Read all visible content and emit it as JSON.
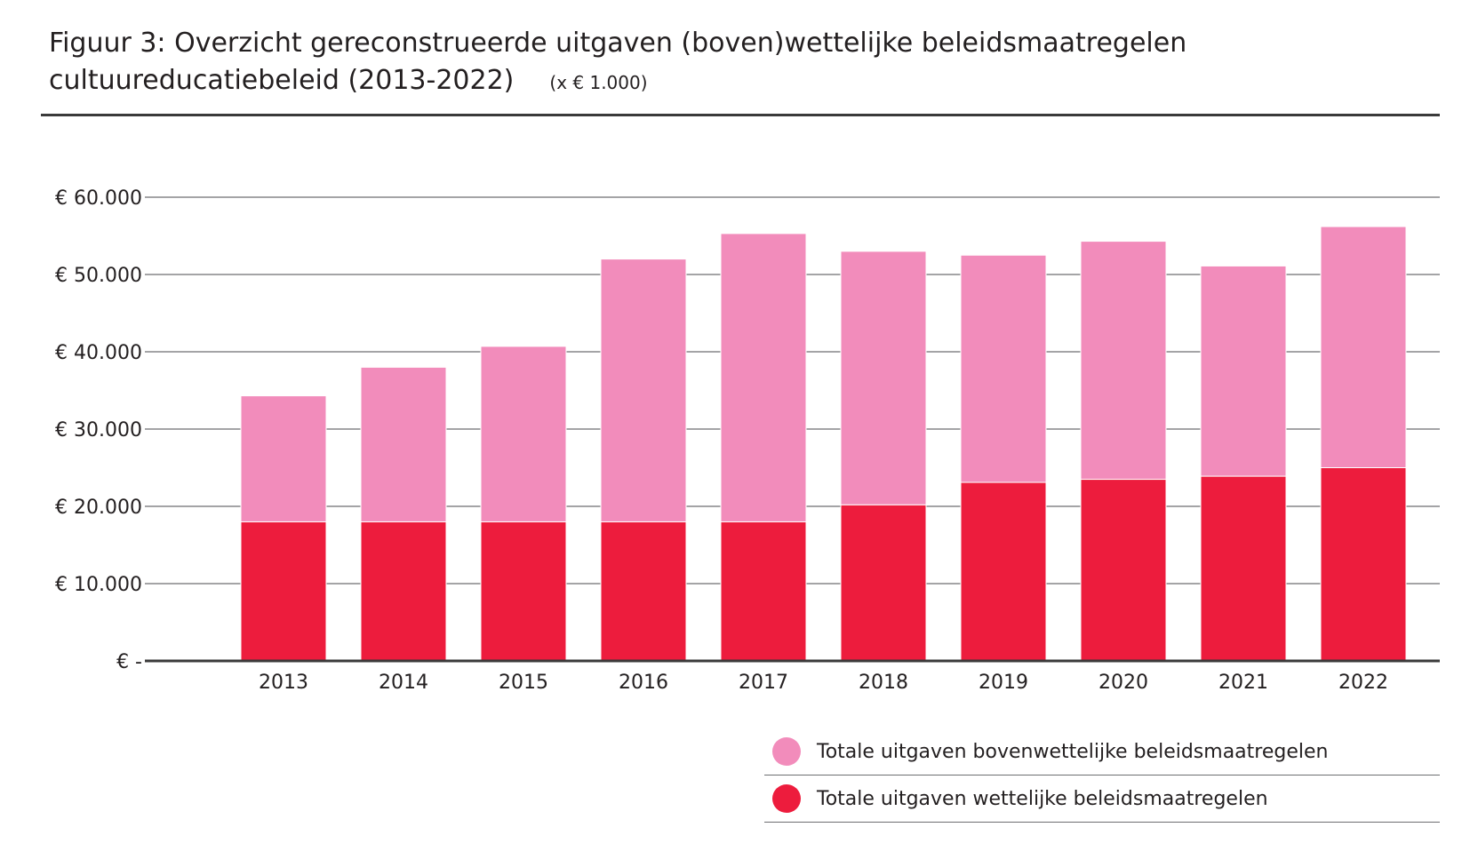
{
  "title": {
    "line1": "Figuur 3: Overzicht gereconstrueerde uitgaven (boven)wettelijke beleidsmaatregelen",
    "line2": "cultuureducatiebeleid (2013-2022)",
    "unit": "(x € 1.000)"
  },
  "colors": {
    "statutory": "#ed1c3d",
    "above_statutory": "#f28cbb",
    "gridline": "#6d6e71",
    "axis": "#3a3a3a",
    "text": "#231f20"
  },
  "legend": [
    {
      "label": "Totale uitgaven bovenwettelijke beleidsmaatregelen",
      "color": "#f28cbb"
    },
    {
      "label": "Totale uitgaven wettelijke beleidsmaatregelen",
      "color": "#ed1c3d"
    }
  ],
  "chart_data": {
    "type": "bar",
    "stacked": true,
    "categories": [
      "2013",
      "2014",
      "2015",
      "2016",
      "2017",
      "2018",
      "2019",
      "2020",
      "2021",
      "2022"
    ],
    "series": [
      {
        "name": "Totale uitgaven wettelijke beleidsmaatregelen",
        "color": "#ed1c3d",
        "values": [
          18000,
          18000,
          18000,
          18000,
          18000,
          20200,
          23100,
          23500,
          23900,
          25000
        ]
      },
      {
        "name": "Totale uitgaven bovenwettelijke beleidsmaatregelen",
        "color": "#f28cbb",
        "values": [
          16300,
          20000,
          22700,
          34000,
          37300,
          32800,
          29400,
          30800,
          27200,
          31200
        ]
      }
    ],
    "ylim": [
      0,
      60000
    ],
    "yticks": [
      0,
      10000,
      20000,
      30000,
      40000,
      50000,
      60000
    ],
    "ytick_labels": [
      "€ -",
      "€ 10.000",
      "€ 20.000",
      "€ 30.000",
      "€ 40.000",
      "€ 50.000",
      "€ 60.000"
    ],
    "grid": true,
    "legend_position": "bottom-right"
  }
}
